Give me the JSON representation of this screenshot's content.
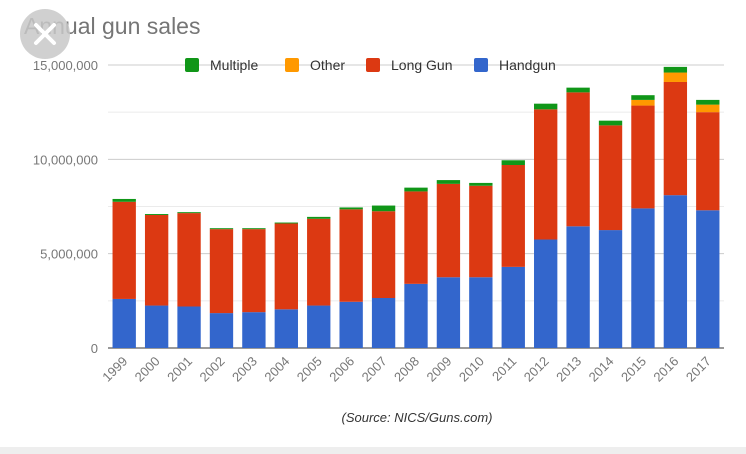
{
  "colors": {
    "Handgun": "#3366cc",
    "Long Gun": "#dc3912",
    "Other": "#ff9900",
    "Multiple": "#109618"
  },
  "close_button": {
    "icon": "close-icon"
  },
  "chart_data": {
    "type": "bar",
    "stacked": true,
    "title": "Annual gun sales",
    "source": "(Source: NICS/Guns.com)",
    "categories": [
      "1999",
      "2000",
      "2001",
      "2002",
      "2003",
      "2004",
      "2005",
      "2006",
      "2007",
      "2008",
      "2009",
      "2010",
      "2011",
      "2012",
      "2013",
      "2014",
      "2015",
      "2016",
      "2017"
    ],
    "series": [
      {
        "name": "Handgun",
        "values": [
          2600000,
          2250000,
          2200000,
          1850000,
          1900000,
          2050000,
          2250000,
          2450000,
          2650000,
          3400000,
          3750000,
          3750000,
          4300000,
          5750000,
          6450000,
          6250000,
          7400000,
          8100000,
          7300000
        ]
      },
      {
        "name": "Long Gun",
        "values": [
          5150000,
          4800000,
          4950000,
          4450000,
          4400000,
          4550000,
          4600000,
          4900000,
          4600000,
          4900000,
          4950000,
          4850000,
          5400000,
          6900000,
          7100000,
          5550000,
          5450000,
          6000000,
          5200000
        ]
      },
      {
        "name": "Other",
        "values": [
          0,
          0,
          0,
          0,
          0,
          0,
          0,
          0,
          0,
          0,
          0,
          0,
          0,
          0,
          0,
          0,
          300000,
          500000,
          400000
        ]
      },
      {
        "name": "Multiple",
        "values": [
          150000,
          50000,
          50000,
          50000,
          50000,
          50000,
          100000,
          100000,
          300000,
          200000,
          200000,
          150000,
          250000,
          300000,
          250000,
          250000,
          250000,
          300000,
          250000
        ]
      }
    ],
    "legend_order": [
      "Multiple",
      "Other",
      "Long Gun",
      "Handgun"
    ],
    "legend_position": "top",
    "ylim": [
      0,
      15000000
    ],
    "yticks": [
      0,
      5000000,
      10000000,
      15000000
    ],
    "ytick_labels": [
      "0",
      "5,000,000",
      "10,000,000",
      "15,000,000"
    ],
    "grid": true,
    "xlabel": "",
    "ylabel": ""
  }
}
